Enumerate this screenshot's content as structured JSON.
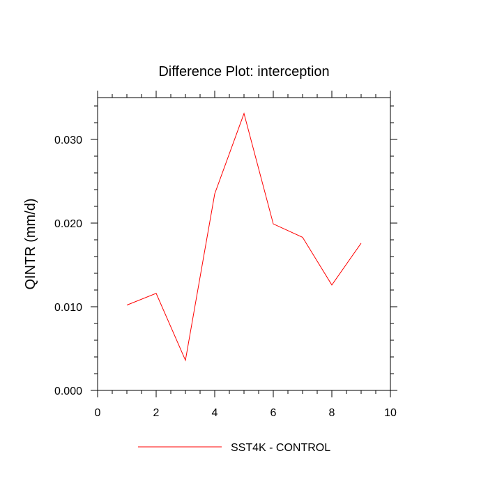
{
  "chart_data": {
    "type": "line",
    "title": "Difference Plot: interception",
    "xlabel": "",
    "ylabel": "QINTR  (mm/d)",
    "xlim": [
      0,
      10
    ],
    "ylim": [
      0,
      0.035
    ],
    "x_ticks": [
      0,
      2,
      4,
      6,
      8,
      10
    ],
    "x_tick_labels": [
      "0",
      "2",
      "4",
      "6",
      "8",
      "10"
    ],
    "y_ticks": [
      0,
      0.01,
      0.02,
      0.03
    ],
    "y_tick_labels": [
      "0.000",
      "0.010",
      "0.020",
      "0.030"
    ],
    "grid": false,
    "legend_position": "bottom",
    "series": [
      {
        "name": "SST4K - CONTROL",
        "color": "#ff0000",
        "x": [
          1,
          2,
          3,
          4,
          5,
          6,
          7,
          8,
          9
        ],
        "y": [
          0.0102,
          0.0116,
          0.0036,
          0.0235,
          0.0331,
          0.0199,
          0.0183,
          0.0126,
          0.0176
        ]
      }
    ]
  }
}
